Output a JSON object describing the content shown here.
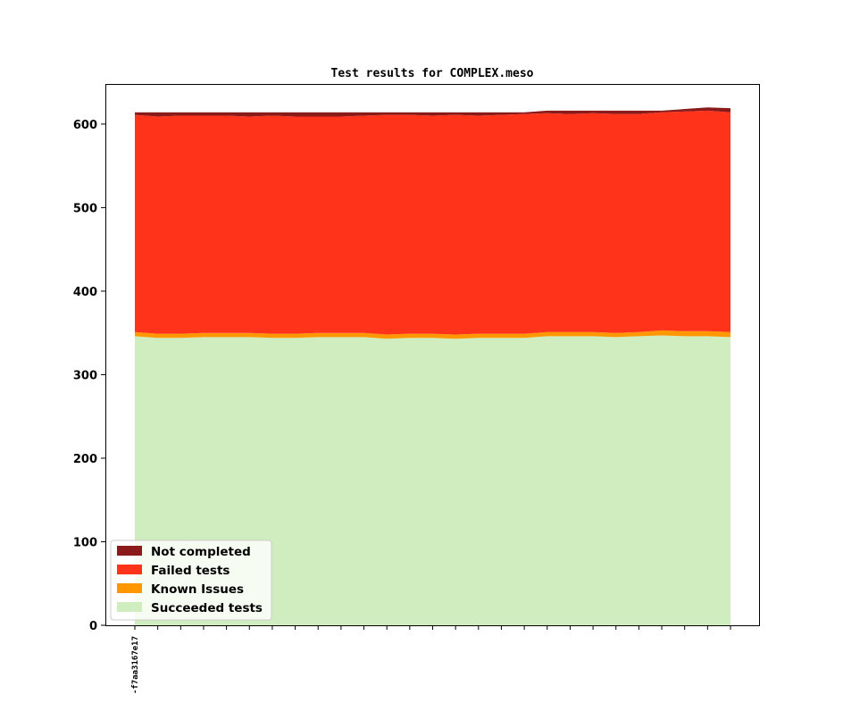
{
  "chart_data": {
    "type": "area",
    "stacked": true,
    "title": "Test results for COMPLEX.meso",
    "xlabel": "",
    "ylabel": "",
    "ylim": [
      0,
      648
    ],
    "yticks": [
      0,
      100,
      200,
      300,
      400,
      500,
      600
    ],
    "n_points": 27,
    "x_tick_labels": [
      "-f7aa3167e17"
    ],
    "legend_position": "lower-left",
    "grid": false,
    "series": [
      {
        "name": "Succeeded tests",
        "color": "#cfedbe",
        "values": [
          346,
          344,
          344,
          345,
          345,
          345,
          344,
          344,
          345,
          345,
          345,
          343,
          344,
          344,
          343,
          344,
          344,
          344,
          346,
          346,
          346,
          345,
          346,
          347,
          346,
          346,
          345
        ]
      },
      {
        "name": "Known Issues",
        "color": "#ff9800",
        "values": [
          5,
          5,
          5,
          5,
          5,
          5,
          5,
          5,
          5,
          5,
          5,
          5,
          5,
          5,
          5,
          5,
          5,
          5,
          5,
          5,
          5,
          5,
          5,
          6,
          6,
          6,
          6
        ]
      },
      {
        "name": "Failed tests",
        "color": "#ff331a",
        "values": [
          260,
          260,
          261,
          260,
          260,
          259,
          261,
          260,
          259,
          259,
          260,
          263,
          262,
          261,
          263,
          261,
          262,
          263,
          262,
          261,
          262,
          262,
          261,
          261,
          263,
          264,
          263
        ]
      },
      {
        "name": "Not completed",
        "color": "#8b1a1a",
        "values": [
          3,
          5,
          4,
          4,
          4,
          5,
          4,
          5,
          5,
          5,
          4,
          3,
          3,
          4,
          3,
          4,
          3,
          2,
          3,
          4,
          3,
          4,
          4,
          2,
          3,
          4,
          5
        ]
      }
    ]
  }
}
